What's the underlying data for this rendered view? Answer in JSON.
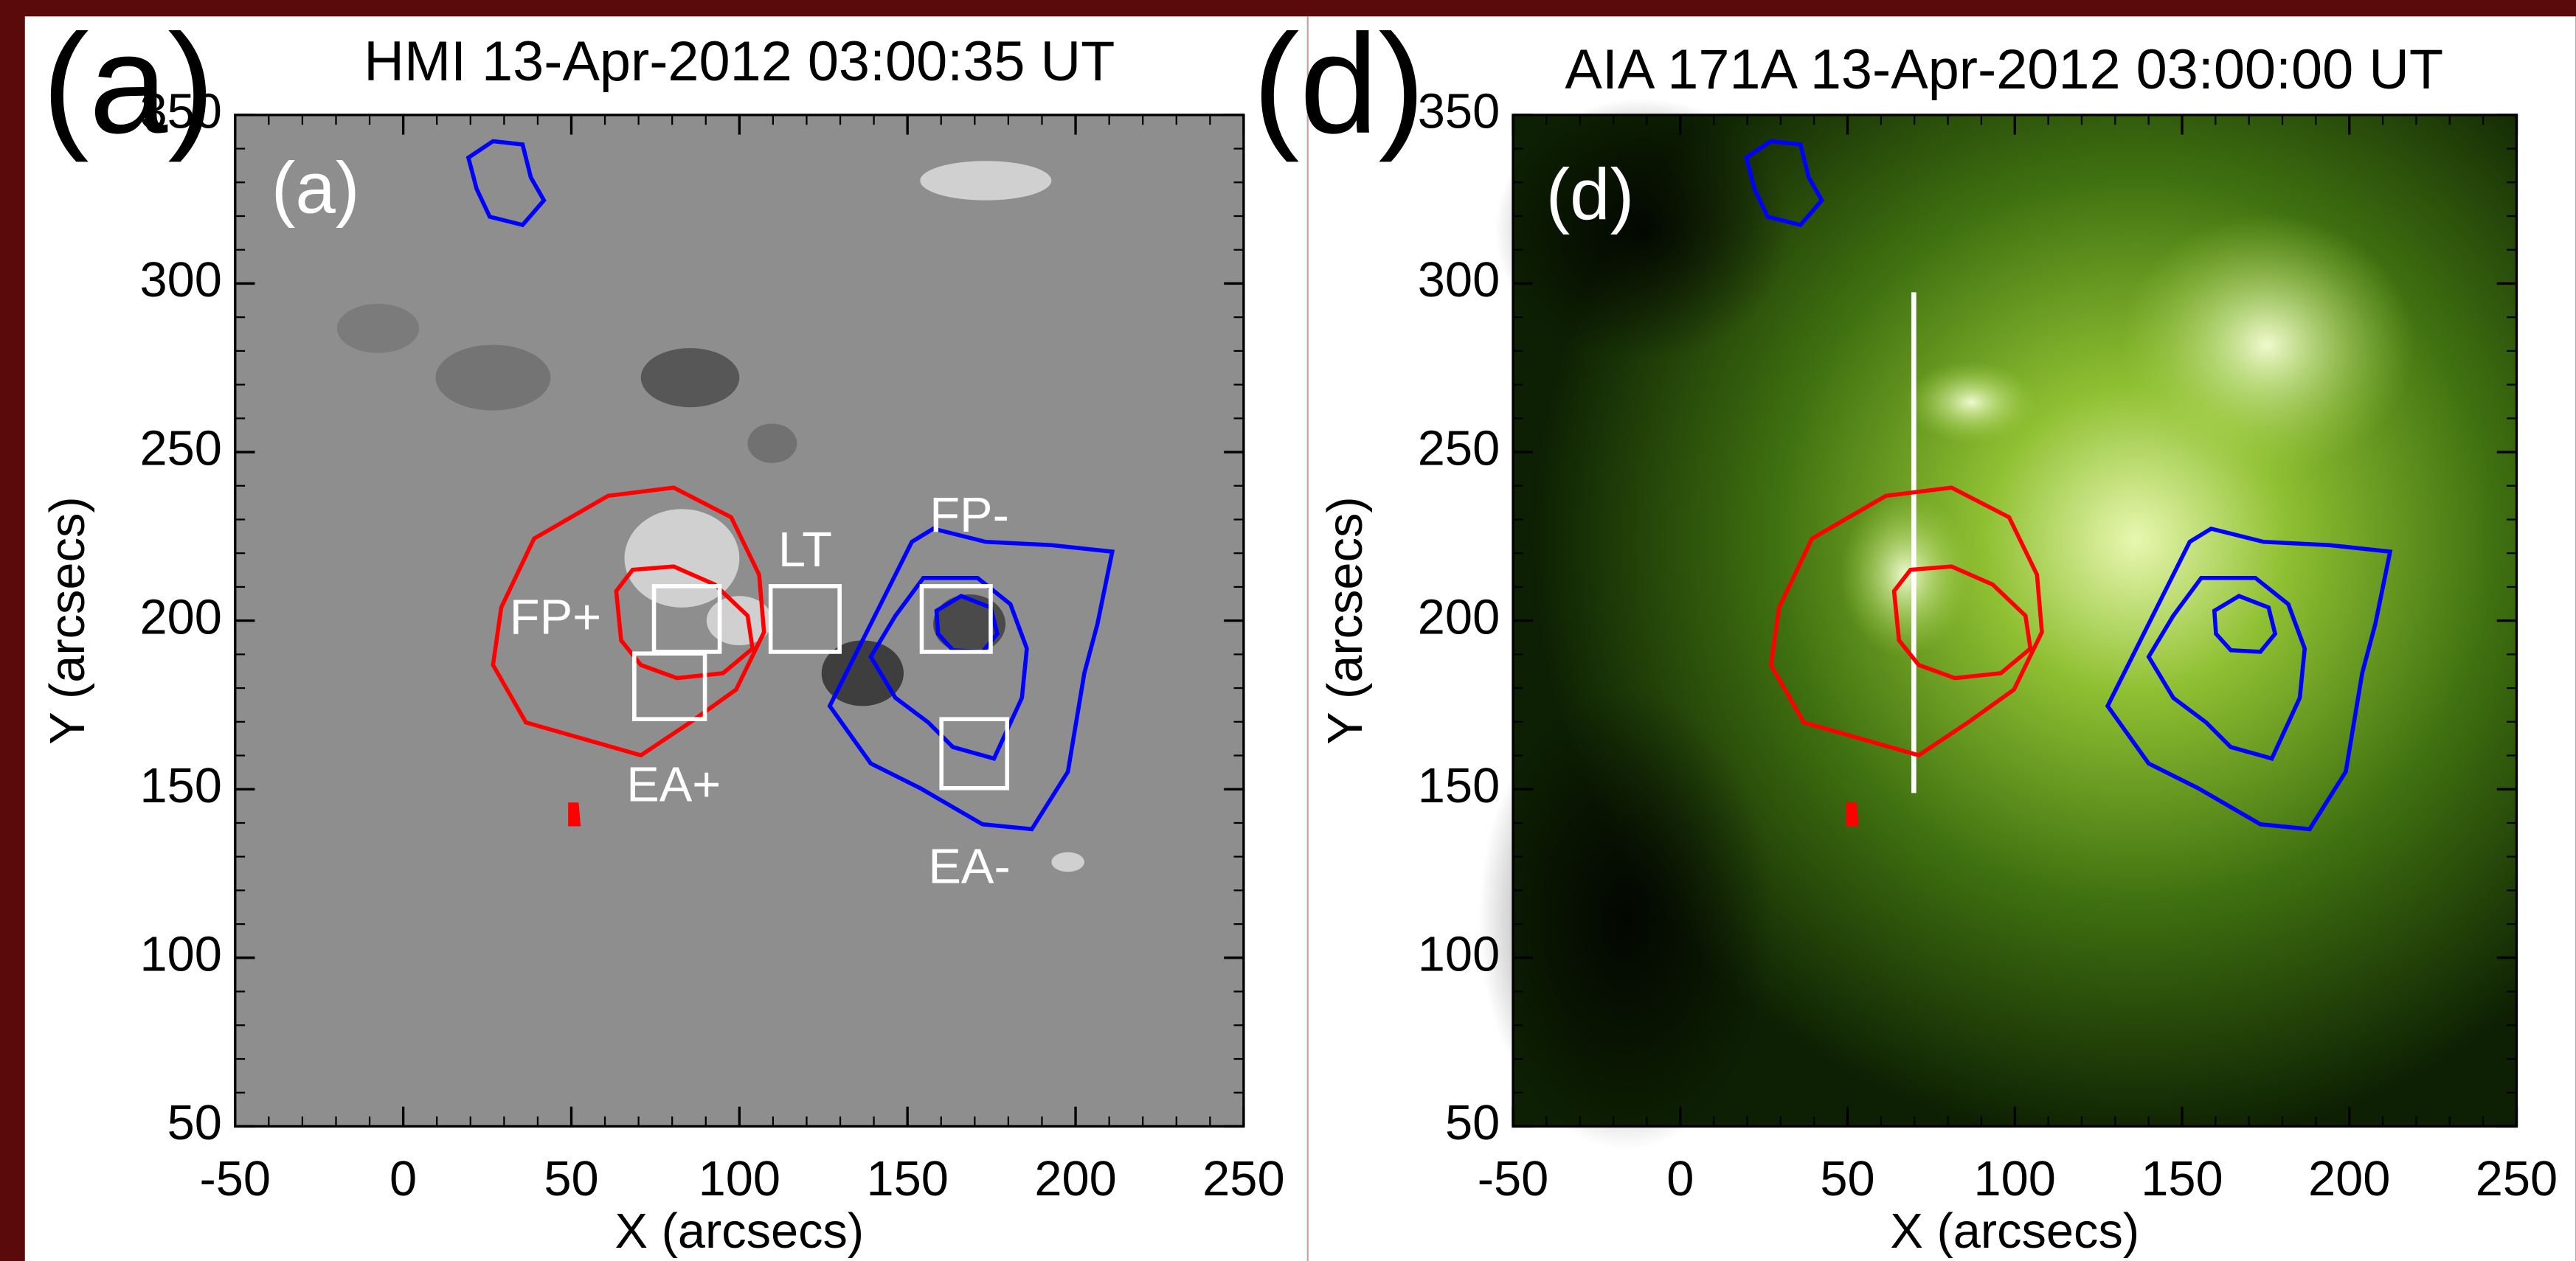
{
  "chart_data": [
    {
      "type": "image",
      "title": "HMI 13-Apr-2012 03:00:35 UT",
      "panel_label": "(a)",
      "inset_label": "(a)",
      "x_label": "X (arcsecs)",
      "y_label": "Y (arcsecs)",
      "xlim": [
        -50,
        250
      ],
      "ylim": [
        50,
        350
      ],
      "xticks": [
        -50,
        0,
        50,
        100,
        150,
        200,
        250
      ],
      "yticks": [
        50,
        100,
        150,
        200,
        250,
        300,
        350
      ],
      "annotations": [
        "FP+",
        "LT",
        "FP-",
        "EA+",
        "EA-"
      ]
    },
    {
      "type": "image",
      "title": "AIA 171A 13-Apr-2012 03:00:00 UT",
      "panel_label": "(d)",
      "inset_label": "(d)",
      "x_label": "X (arcsecs)",
      "y_label": "Y (arcsecs)",
      "xlim": [
        -50,
        250
      ],
      "ylim": [
        50,
        350
      ],
      "xticks": [
        -50,
        0,
        50,
        100,
        150,
        200,
        250
      ],
      "yticks": [
        50,
        100,
        150,
        200,
        250,
        300,
        350
      ]
    }
  ]
}
